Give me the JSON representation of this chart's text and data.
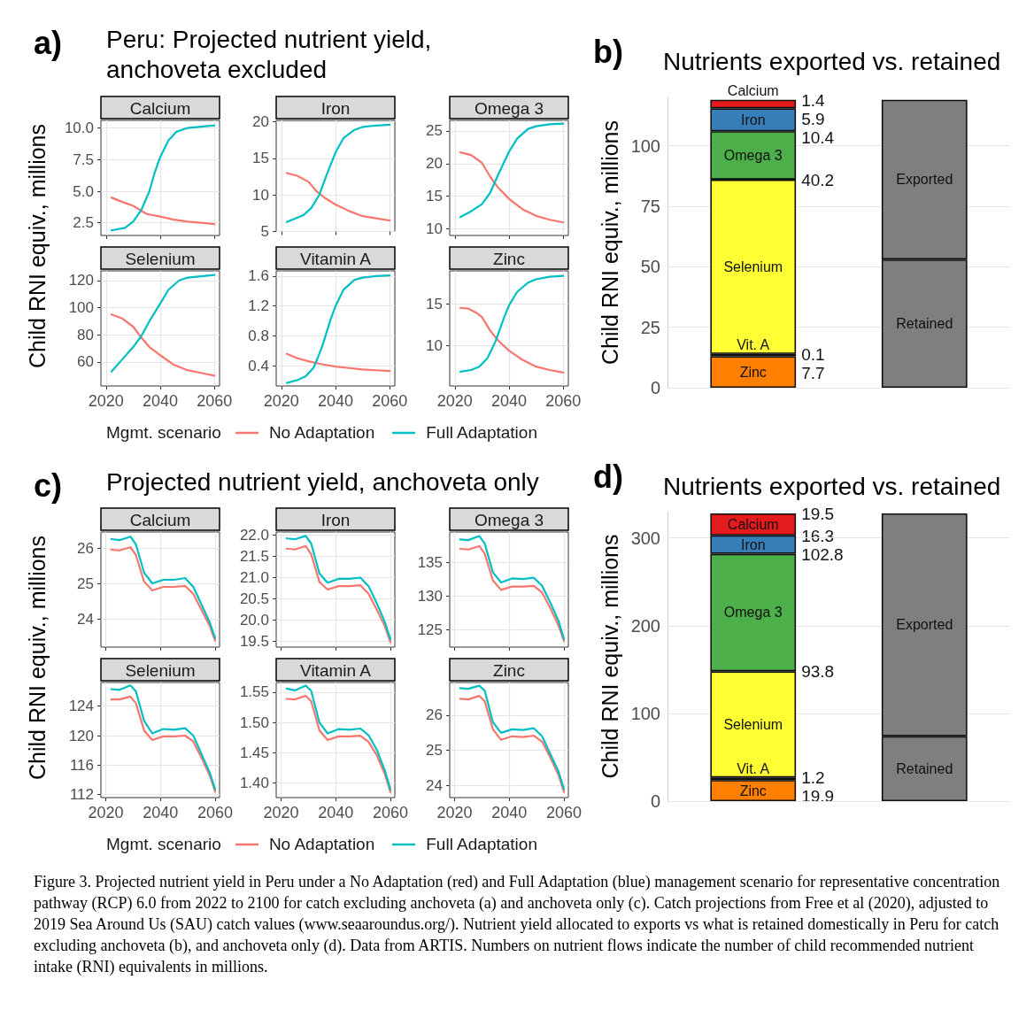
{
  "chart_data": [
    {
      "type": "other",
      "title": "Peru: Projected nutrient yield, anchoveta excluded",
      "annotations": [
        "a)"
      ]
    },
    {
      "type": "line",
      "title": "Calcium",
      "ylabel": "Child RNI equiv., millions",
      "legend": "bottom",
      "legend_title": "Mgmt. scenario",
      "xlim": [
        2018.1,
        2061.9
      ],
      "ylim": [
        1.5,
        10.6
      ],
      "xticks": [
        2020,
        2040,
        2060
      ],
      "yticks": [
        2.5,
        {
          "value": 5,
          "label": "5.0"
        },
        7.5,
        {
          "value": 10,
          "label": "10.0"
        }
      ],
      "tick_labels": "y",
      "grid": true,
      "series": [
        {
          "name": "No Adaptation",
          "color": "#f8766d",
          "x": [
            2022,
            2026,
            2030,
            2035,
            2040,
            2045,
            2050,
            2055,
            2060
          ],
          "values": [
            4.5,
            4.15,
            3.85,
            3.2,
            3.0,
            2.75,
            2.6,
            2.5,
            2.4
          ]
        },
        {
          "name": "Full Adaptation",
          "color": "#00bfc4",
          "x": [
            2022,
            2027,
            2030,
            2033,
            2036,
            2038,
            2040,
            2043,
            2046,
            2050,
            2055,
            2060
          ],
          "values": [
            1.9,
            2.1,
            2.6,
            3.5,
            5.0,
            6.5,
            7.7,
            9.0,
            9.7,
            10.0,
            10.1,
            10.2
          ]
        }
      ]
    },
    {
      "type": "line",
      "title": "Iron",
      "xlim": [
        2018.1,
        2061.9
      ],
      "ylim": [
        5,
        20.2
      ],
      "xticks": [
        2020,
        2040,
        2060
      ],
      "yticks": [
        5,
        10,
        15,
        20
      ],
      "tick_labels": "y",
      "grid": true,
      "series": [
        {
          "color": "#f8766d",
          "x": [
            2022,
            2026,
            2030,
            2033,
            2036,
            2040,
            2045,
            2050,
            2055,
            2060
          ],
          "values": [
            13.0,
            12.6,
            11.8,
            10.5,
            9.6,
            8.7,
            7.8,
            7.1,
            6.8,
            6.5
          ]
        },
        {
          "color": "#00bfc4",
          "x": [
            2022,
            2028,
            2031,
            2034,
            2037,
            2040,
            2043,
            2047,
            2050,
            2055,
            2060
          ],
          "values": [
            6.3,
            7.2,
            8.2,
            10.0,
            13.0,
            15.8,
            17.8,
            18.9,
            19.3,
            19.5,
            19.6
          ]
        }
      ]
    },
    {
      "type": "line",
      "title": "Omega 3",
      "xlim": [
        2018.1,
        2061.9
      ],
      "ylim": [
        9.0,
        26.6
      ],
      "xticks": [
        2020,
        2040,
        2060
      ],
      "yticks": [
        10,
        15,
        20,
        25
      ],
      "tick_labels": "y",
      "grid": true,
      "series": [
        {
          "color": "#f8766d",
          "x": [
            2022,
            2026,
            2030,
            2033,
            2036,
            2040,
            2045,
            2050,
            2055,
            2060
          ],
          "values": [
            21.7,
            21.3,
            20.1,
            18.0,
            16.3,
            14.6,
            13.0,
            12.0,
            11.4,
            11.0
          ]
        },
        {
          "color": "#00bfc4",
          "x": [
            2022,
            2026,
            2030,
            2033,
            2036,
            2040,
            2043,
            2047,
            2050,
            2055,
            2060
          ],
          "values": [
            11.8,
            12.7,
            13.8,
            15.5,
            18.3,
            21.8,
            23.8,
            25.3,
            25.7,
            26.0,
            26.1
          ]
        }
      ]
    },
    {
      "type": "line",
      "title": "Selenium",
      "xlim": [
        2018.1,
        2061.9
      ],
      "ylim": [
        42.4,
        127
      ],
      "xticks": [
        2020,
        2040,
        2060
      ],
      "yticks": [
        60,
        80,
        100,
        120
      ],
      "grid": true,
      "series": [
        {
          "color": "#f8766d",
          "x": [
            2022,
            2026,
            2030,
            2033,
            2036,
            2040,
            2045,
            2050,
            2055,
            2060
          ],
          "values": [
            95,
            92,
            86,
            78,
            71,
            65,
            58,
            54,
            52,
            50
          ]
        },
        {
          "color": "#00bfc4",
          "x": [
            2022,
            2026,
            2030,
            2033,
            2036,
            2040,
            2043,
            2047,
            2050,
            2055,
            2060
          ],
          "values": [
            53,
            62,
            71,
            79,
            90,
            103,
            113,
            120,
            122,
            123,
            124
          ]
        }
      ]
    },
    {
      "type": "line",
      "title": "Vitamin A",
      "xlim": [
        2018.1,
        2061.9
      ],
      "ylim": [
        0.13,
        1.67
      ],
      "xticks": [
        2020,
        2040,
        2060
      ],
      "yticks": [
        0.4,
        0.8,
        1.2,
        1.6
      ],
      "grid": true,
      "series": [
        {
          "color": "#f8766d",
          "x": [
            2022,
            2026,
            2030,
            2035,
            2040,
            2045,
            2050,
            2055,
            2060
          ],
          "values": [
            0.56,
            0.5,
            0.46,
            0.42,
            0.39,
            0.37,
            0.35,
            0.34,
            0.33
          ]
        },
        {
          "color": "#00bfc4",
          "x": [
            2022,
            2026,
            2029,
            2032,
            2035,
            2038,
            2040,
            2043,
            2047,
            2050,
            2055,
            2060
          ],
          "values": [
            0.17,
            0.21,
            0.26,
            0.38,
            0.65,
            1.0,
            1.2,
            1.42,
            1.55,
            1.58,
            1.6,
            1.61
          ]
        }
      ]
    },
    {
      "type": "line",
      "title": "Zinc",
      "xlim": [
        2018.1,
        2061.9
      ],
      "ylim": [
        5.2,
        18.9
      ],
      "xticks": [
        2020,
        2040,
        2060
      ],
      "yticks": [
        10,
        15
      ],
      "grid": true,
      "series": [
        {
          "color": "#f8766d",
          "x": [
            2022,
            2025,
            2028,
            2030,
            2033,
            2036,
            2040,
            2045,
            2050,
            2055,
            2060
          ],
          "values": [
            14.5,
            14.4,
            13.9,
            13.4,
            11.8,
            10.6,
            9.4,
            8.3,
            7.5,
            7.1,
            6.8
          ]
        },
        {
          "color": "#00bfc4",
          "x": [
            2022,
            2026,
            2029,
            2032,
            2035,
            2038,
            2040,
            2043,
            2047,
            2050,
            2055,
            2060
          ],
          "values": [
            6.9,
            7.1,
            7.5,
            8.5,
            10.5,
            13.2,
            14.8,
            16.4,
            17.5,
            17.9,
            18.2,
            18.3
          ]
        }
      ]
    },
    {
      "type": "bar",
      "title": "Nutrients exported vs. retained",
      "ylabel": "Child RNI equiv., millions",
      "categories": [
        null,
        null
      ],
      "stacked": true,
      "ylim": [
        0,
        120
      ],
      "yticks": [
        0,
        25,
        50,
        75,
        100
      ],
      "grid": "y",
      "annotations": [
        "b)",
        "1.4",
        "5.9",
        "10.4",
        "40.2",
        "0.1",
        "7.7"
      ],
      "series": [
        {
          "name": "Zinc",
          "color": "#ff7f00",
          "values": [
            13,
            null
          ]
        },
        {
          "name": "Vit. A",
          "color": "#984ea3",
          "values": [
            1,
            null
          ]
        },
        {
          "name": "Selenium",
          "color": "#ffff33",
          "values": [
            72,
            null
          ]
        },
        {
          "name": "Omega 3",
          "color": "#4daf4a",
          "values": [
            20,
            null
          ]
        },
        {
          "name": "Iron",
          "color": "#377eb8",
          "values": [
            9.5,
            null
          ]
        },
        {
          "name": "Calcium",
          "color": "#e41a1c",
          "values": [
            3.5,
            null
          ]
        },
        {
          "name": "Retained",
          "color": "#7f7f7f",
          "values": [
            null,
            53
          ]
        },
        {
          "name": "Exported",
          "color": "#7f7f7f",
          "values": [
            null,
            66
          ]
        }
      ]
    },
    {
      "type": "other",
      "title": "Projected nutrient yield, anchoveta only",
      "annotations": [
        "c)"
      ]
    },
    {
      "type": "line",
      "title": "Calcium",
      "ylabel": "Child RNI equiv., millions",
      "legend": "bottom",
      "legend_title": "Mgmt. scenario",
      "x": [
        2022,
        2025,
        2029,
        2031,
        2034,
        2037,
        2041,
        2045,
        2049,
        2052,
        2055,
        2058,
        2060
      ],
      "xlim": [
        2018.2,
        2061.6
      ],
      "ylim": [
        23.2,
        26.45
      ],
      "xticks": [
        2020,
        2040,
        2060
      ],
      "yticks": [
        24,
        25,
        26
      ],
      "tick_labels": "y",
      "grid": true,
      "series": [
        {
          "name": "No Adaptation",
          "color": "#f8766d",
          "values": [
            25.95,
            25.93,
            26.02,
            25.8,
            25.05,
            24.8,
            24.9,
            24.9,
            24.93,
            24.7,
            24.25,
            23.8,
            23.38
          ]
        },
        {
          "name": "Full Adaptation",
          "color": "#00bfc4",
          "values": [
            26.25,
            26.22,
            26.32,
            26.1,
            25.3,
            25.0,
            25.1,
            25.1,
            25.15,
            24.9,
            24.4,
            23.9,
            23.45
          ]
        }
      ]
    },
    {
      "type": "line",
      "title": "Iron",
      "x": [
        2022,
        2025,
        2029,
        2031,
        2034,
        2037,
        2041,
        2045,
        2049,
        2052,
        2055,
        2058,
        2060
      ],
      "xlim": [
        2018.2,
        2061.6
      ],
      "ylim": [
        19.37,
        22.07
      ],
      "xticks": [
        2020,
        2040,
        2060
      ],
      "yticks": [
        19.5,
        {
          "value": 20,
          "label": "20.0"
        },
        20.5,
        {
          "value": 21,
          "label": "21.0"
        },
        21.5,
        {
          "value": 22,
          "label": "22.0"
        }
      ],
      "tick_labels": "y",
      "grid": true,
      "series": [
        {
          "color": "#f8766d",
          "values": [
            21.68,
            21.66,
            21.74,
            21.55,
            20.9,
            20.72,
            20.8,
            20.8,
            20.82,
            20.62,
            20.25,
            19.85,
            19.48
          ]
        },
        {
          "color": "#00bfc4",
          "values": [
            21.92,
            21.9,
            21.98,
            21.8,
            21.1,
            20.88,
            20.97,
            20.97,
            21.0,
            20.8,
            20.4,
            19.95,
            19.55
          ]
        }
      ]
    },
    {
      "type": "line",
      "title": "Omega 3",
      "x": [
        2022,
        2025,
        2029,
        2031,
        2034,
        2037,
        2041,
        2045,
        2049,
        2052,
        2055,
        2058,
        2060
      ],
      "xlim": [
        2018.2,
        2061.6
      ],
      "ylim": [
        122.4,
        139.5
      ],
      "xticks": [
        2020,
        2040,
        2060
      ],
      "yticks": [
        125,
        130,
        135
      ],
      "tick_labels": "y",
      "grid": true,
      "series": [
        {
          "color": "#f8766d",
          "values": [
            137.0,
            136.9,
            137.4,
            136.3,
            132.3,
            130.9,
            131.4,
            131.4,
            131.5,
            130.5,
            128.2,
            125.6,
            123.3
          ]
        },
        {
          "color": "#00bfc4",
          "values": [
            138.4,
            138.3,
            138.9,
            137.8,
            133.5,
            132.0,
            132.6,
            132.5,
            132.7,
            131.5,
            129.0,
            126.3,
            123.6
          ]
        }
      ]
    },
    {
      "type": "line",
      "title": "Selenium",
      "x": [
        2022,
        2025,
        2029,
        2031,
        2034,
        2037,
        2041,
        2045,
        2049,
        2052,
        2055,
        2058,
        2060
      ],
      "xlim": [
        2018.2,
        2061.6
      ],
      "ylim": [
        111.6,
        127.2
      ],
      "xticks": [
        2020,
        2040,
        2060
      ],
      "yticks": [
        112,
        116,
        120,
        124
      ],
      "grid": true,
      "series": [
        {
          "color": "#f8766d",
          "values": [
            124.9,
            124.9,
            125.3,
            124.4,
            120.7,
            119.4,
            119.9,
            119.9,
            120.0,
            119.2,
            117.0,
            114.6,
            112.4
          ]
        },
        {
          "color": "#00bfc4",
          "values": [
            126.3,
            126.2,
            126.8,
            126.0,
            122.0,
            120.3,
            120.9,
            120.8,
            121.0,
            120.0,
            117.5,
            115.0,
            112.7
          ]
        }
      ]
    },
    {
      "type": "line",
      "title": "Vitamin A",
      "x": [
        2022,
        2025,
        2029,
        2031,
        2034,
        2037,
        2041,
        2045,
        2049,
        2052,
        2055,
        2058,
        2060
      ],
      "xlim": [
        2018.2,
        2061.6
      ],
      "ylim": [
        1.376,
        1.566
      ],
      "xticks": [
        2020,
        2040,
        2060
      ],
      "yticks": [
        {
          "value": 1.4,
          "label": "1.40"
        },
        1.45,
        {
          "value": 1.5,
          "label": "1.50"
        },
        1.55
      ],
      "grid": true,
      "series": [
        {
          "color": "#f8766d",
          "values": [
            1.539,
            1.538,
            1.544,
            1.535,
            1.487,
            1.471,
            1.477,
            1.477,
            1.478,
            1.468,
            1.446,
            1.414,
            1.385
          ]
        },
        {
          "color": "#00bfc4",
          "values": [
            1.556,
            1.553,
            1.561,
            1.552,
            1.5,
            1.482,
            1.489,
            1.488,
            1.49,
            1.479,
            1.455,
            1.42,
            1.389
          ]
        }
      ]
    },
    {
      "type": "line",
      "title": "Zinc",
      "x": [
        2022,
        2025,
        2029,
        2031,
        2034,
        2037,
        2041,
        2045,
        2049,
        2052,
        2055,
        2058,
        2060
      ],
      "xlim": [
        2018.2,
        2061.6
      ],
      "ylim": [
        23.66,
        26.93
      ],
      "xticks": [
        2020,
        2040,
        2060
      ],
      "yticks": [
        24,
        25,
        26
      ],
      "grid": true,
      "series": [
        {
          "color": "#f8766d",
          "values": [
            26.47,
            26.45,
            26.55,
            26.4,
            25.6,
            25.3,
            25.4,
            25.38,
            25.42,
            25.25,
            24.8,
            24.3,
            23.82
          ]
        },
        {
          "color": "#00bfc4",
          "values": [
            26.77,
            26.75,
            26.84,
            26.7,
            25.8,
            25.5,
            25.6,
            25.58,
            25.63,
            25.4,
            24.9,
            24.4,
            23.9
          ]
        }
      ]
    },
    {
      "type": "bar",
      "title": "Nutrients exported vs. retained",
      "ylabel": "Child RNI equiv., millions",
      "categories": [
        null,
        null
      ],
      "stacked": true,
      "ylim": [
        0,
        330
      ],
      "yticks": [
        0,
        100,
        200,
        300
      ],
      "grid": "y",
      "annotations": [
        "d)",
        "19.5",
        "16.3",
        "102.8",
        "93.8",
        "1.2",
        "19.9"
      ],
      "series": [
        {
          "name": "Zinc",
          "color": "#ff7f00",
          "values": [
            24,
            null
          ]
        },
        {
          "name": "Vit. A",
          "color": "#984ea3",
          "values": [
            3,
            null
          ]
        },
        {
          "name": "Selenium",
          "color": "#ffff33",
          "values": [
            121,
            null
          ]
        },
        {
          "name": "Omega 3",
          "color": "#4daf4a",
          "values": [
            134,
            null
          ]
        },
        {
          "name": "Iron",
          "color": "#377eb8",
          "values": [
            21,
            null
          ]
        },
        {
          "name": "Calcium",
          "color": "#e41a1c",
          "values": [
            25,
            null
          ]
        },
        {
          "name": "Retained",
          "color": "#7f7f7f",
          "values": [
            null,
            74
          ]
        },
        {
          "name": "Exported",
          "color": "#7f7f7f",
          "values": [
            null,
            254
          ]
        }
      ]
    },
    {
      "type": "other",
      "annotations": [
        "Figure 3. Projected nutrient yield in Peru under a No Adaptation (red) and Full Adaptation (blue) management scenario for representative concentration pathway (RCP) 6.0 from 2022 to 2100 for catch excluding anchoveta (a) and anchoveta only (c). Catch projections from Free et al (2020), adjusted to 2019 Sea Around Us (SAU) catch values (www.seaaroundus.org/). Nutrient yield allocated to exports vs what is retained domestically in Peru for catch excluding anchoveta (b), and anchoveta only (d). Data from ARTIS. Numbers on nutrient flows indicate the number of child recommended nutrient intake (RNI) equivalents in millions."
      ]
    }
  ]
}
